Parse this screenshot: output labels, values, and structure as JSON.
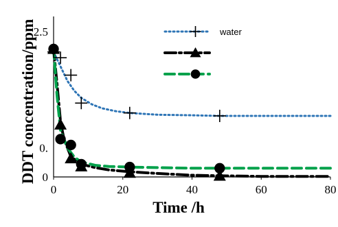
{
  "chart_data": {
    "type": "line",
    "xlabel": "Time /h",
    "ylabel": "DDT concentration/ppm",
    "xlim": [
      0,
      80
    ],
    "ylim": [
      0,
      2.5
    ],
    "x_ticks": [
      "0",
      "20",
      "40",
      "60",
      "80"
    ],
    "y_ticks": [
      "0",
      "0.",
      "2.5"
    ],
    "grid": false,
    "legend_position": "top-right",
    "series": [
      {
        "name": "water",
        "color": "#2E75B6",
        "line_style": "dotted",
        "marker": "plus",
        "points": [
          [
            0,
            2.15
          ],
          [
            2,
            2.05
          ],
          [
            5,
            1.75
          ],
          [
            8,
            1.27
          ],
          [
            22,
            1.1
          ],
          [
            48,
            1.05
          ]
        ],
        "fit": [
          [
            0,
            2.15
          ],
          [
            2,
            1.9
          ],
          [
            4,
            1.65
          ],
          [
            6,
            1.48
          ],
          [
            8,
            1.36
          ],
          [
            11,
            1.25
          ],
          [
            14,
            1.18
          ],
          [
            18,
            1.13
          ],
          [
            22,
            1.1
          ],
          [
            30,
            1.07
          ],
          [
            40,
            1.06
          ],
          [
            48,
            1.05
          ],
          [
            60,
            1.05
          ],
          [
            70,
            1.05
          ],
          [
            80,
            1.05
          ]
        ]
      },
      {
        "name": "",
        "color": "#000000",
        "line_style": "dash-dot",
        "marker": "triangle",
        "points": [
          [
            0,
            2.2
          ],
          [
            2,
            0.9
          ],
          [
            5,
            0.32
          ],
          [
            8,
            0.18
          ],
          [
            22,
            0.07
          ],
          [
            48,
            0.02
          ]
        ],
        "fit": [
          [
            0,
            2.2
          ],
          [
            1,
            1.6
          ],
          [
            2,
            0.95
          ],
          [
            3,
            0.65
          ],
          [
            5,
            0.35
          ],
          [
            8,
            0.22
          ],
          [
            12,
            0.16
          ],
          [
            16,
            0.12
          ],
          [
            22,
            0.09
          ],
          [
            30,
            0.06
          ],
          [
            40,
            0.03
          ],
          [
            48,
            0.02
          ],
          [
            60,
            0.01
          ],
          [
            70,
            0.01
          ],
          [
            80,
            0.01
          ]
        ]
      },
      {
        "name": "",
        "color": "#00A14B",
        "line_style": "dashed",
        "marker": "circle",
        "points": [
          [
            0,
            2.2
          ],
          [
            2,
            0.65
          ],
          [
            5,
            0.55
          ],
          [
            8,
            0.22
          ],
          [
            22,
            0.17
          ],
          [
            48,
            0.15
          ]
        ],
        "fit": [
          [
            0,
            2.2
          ],
          [
            1,
            1.4
          ],
          [
            2,
            0.8
          ],
          [
            4,
            0.5
          ],
          [
            6,
            0.34
          ],
          [
            8,
            0.26
          ],
          [
            12,
            0.2
          ],
          [
            16,
            0.18
          ],
          [
            22,
            0.17
          ],
          [
            30,
            0.16
          ],
          [
            40,
            0.15
          ],
          [
            48,
            0.15
          ],
          [
            60,
            0.15
          ],
          [
            70,
            0.15
          ],
          [
            80,
            0.15
          ]
        ]
      }
    ]
  }
}
